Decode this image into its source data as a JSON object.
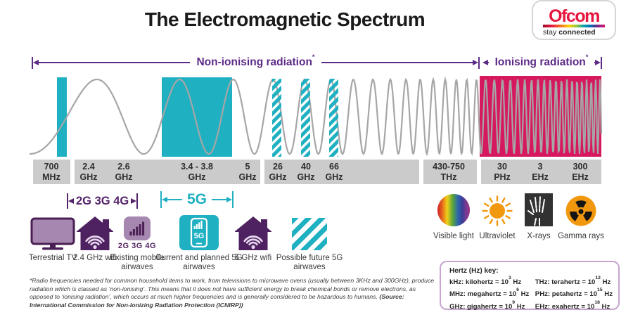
{
  "title": "The Electromagnetic Spectrum",
  "logo": {
    "brand": "Ofcom",
    "tagline_regular": "stay ",
    "tagline_bold": "connected"
  },
  "bands": {
    "non_ionising": "Non-ionising radiation",
    "ionising": "Ionising radiation",
    "marker": "*"
  },
  "frequencies": [
    {
      "value": "700",
      "unit": "MHz"
    },
    {
      "value": "2.4",
      "unit": "GHz"
    },
    {
      "value": "2.6",
      "unit": "GHz"
    },
    {
      "value": "3.4 - 3.8",
      "unit": "GHz"
    },
    {
      "value": "5",
      "unit": "GHz"
    },
    {
      "value": "26",
      "unit": "GHz"
    },
    {
      "value": "40",
      "unit": "GHz"
    },
    {
      "value": "66",
      "unit": "GHz"
    },
    {
      "value": "430-750",
      "unit": "THz"
    },
    {
      "value": "30",
      "unit": "PHz"
    },
    {
      "value": "3",
      "unit": "EHz"
    },
    {
      "value": "300",
      "unit": "EHz"
    }
  ],
  "generations": {
    "legacy": "2G 3G 4G",
    "fiveg": "5G"
  },
  "uses": [
    {
      "label": "Terrestrial TV"
    },
    {
      "label": "2.4 GHz wifi"
    },
    {
      "badge": "2G 3G 4G",
      "label": "Existing mobile airwaves"
    },
    {
      "badge": "5G",
      "label": "Current and planned 5G airwaves"
    },
    {
      "label": "5 GHz wifi"
    },
    {
      "label": "Possible future 5G airwaves"
    }
  ],
  "high_bands": [
    {
      "label": "Visible light"
    },
    {
      "label": "Ultraviolet"
    },
    {
      "label": "X-rays"
    },
    {
      "label": "Gamma rays"
    }
  ],
  "footnote": {
    "text": "*Radio frequencies needed for common household items to work, from televisions to microwave ovens (usually between 3KHz and 300GHz), produce radiation which is classed as ‘non-ionising’. This means that it does not have sufficient energy to break chemical bonds or remove electrons, as opposed to ‘ionising radiation’, which occurs at much higher frequencies and is generally considered to be hazardous to humans. ",
    "source": "(Source: International Commission for Non-Ionizing Radiation Protection (ICNIRP))"
  },
  "hz_key": {
    "heading": "Hertz (Hz) key:",
    "entries": [
      {
        "prefix": "kHz: kilohertz = 10",
        "exp": "3",
        "suffix": " Hz"
      },
      {
        "prefix": "MHz: megahertz = 10",
        "exp": "6",
        "suffix": " Hz"
      },
      {
        "prefix": "GHz: gigahertz = 10",
        "exp": "9",
        "suffix": " Hz"
      },
      {
        "prefix": "THz: terahertz = 10",
        "exp": "12",
        "suffix": " Hz"
      },
      {
        "prefix": "PHz: petahertz = 10",
        "exp": "15",
        "suffix": " Hz"
      },
      {
        "prefix": "EHz: exahertz = 10",
        "exp": "18",
        "suffix": " Hz"
      }
    ]
  },
  "colors": {
    "teal": "#1fb0c2",
    "crimson": "#d6195f",
    "purple": "#5d2a86",
    "dark_purple": "#4e2160",
    "light_purple": "#a687b0",
    "orange": "#f2980f",
    "brand_red": "#e6173e"
  }
}
